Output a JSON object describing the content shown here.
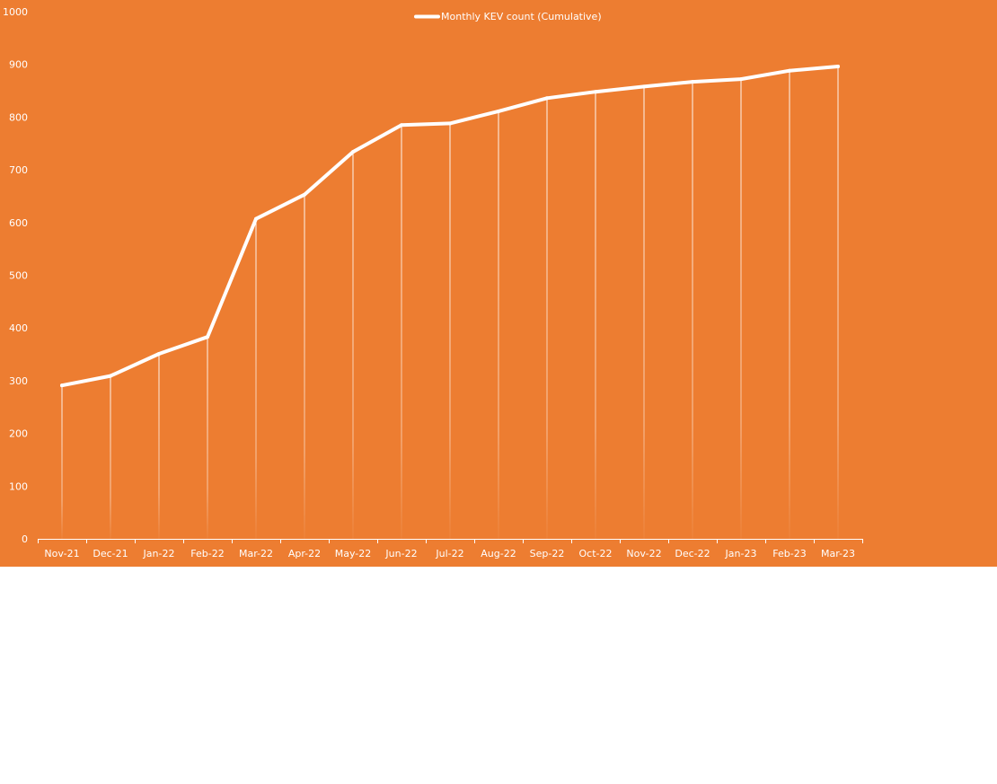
{
  "colors": {
    "background": "#ED7D31",
    "line": "#FFFFFF",
    "axis": "#FFFFFF",
    "page": "#FFFFFF"
  },
  "legend": {
    "label": "Monthly KEV count (Cumulative)",
    "position": "top-center"
  },
  "chart_data": {
    "type": "line",
    "title": "",
    "xlabel": "",
    "ylabel": "",
    "categories": [
      "Nov-21",
      "Dec-21",
      "Jan-22",
      "Feb-22",
      "Mar-22",
      "Apr-22",
      "May-22",
      "Jun-22",
      "Jul-22",
      "Aug-22",
      "Sep-22",
      "Oct-22",
      "Nov-22",
      "Dec-22",
      "Jan-23",
      "Feb-23",
      "Mar-23"
    ],
    "series": [
      {
        "name": "Monthly KEV count (Cumulative)",
        "values": [
          291,
          309,
          351,
          383,
          607,
          653,
          734,
          785,
          788,
          811,
          836,
          848,
          858,
          867,
          872,
          888,
          896
        ]
      }
    ],
    "ylim": [
      0,
      1000
    ],
    "yticks": [
      0,
      100,
      200,
      300,
      400,
      500,
      600,
      700,
      800,
      900,
      1000
    ],
    "drop_lines": true,
    "grid": false,
    "legend_placement": "top-center"
  }
}
